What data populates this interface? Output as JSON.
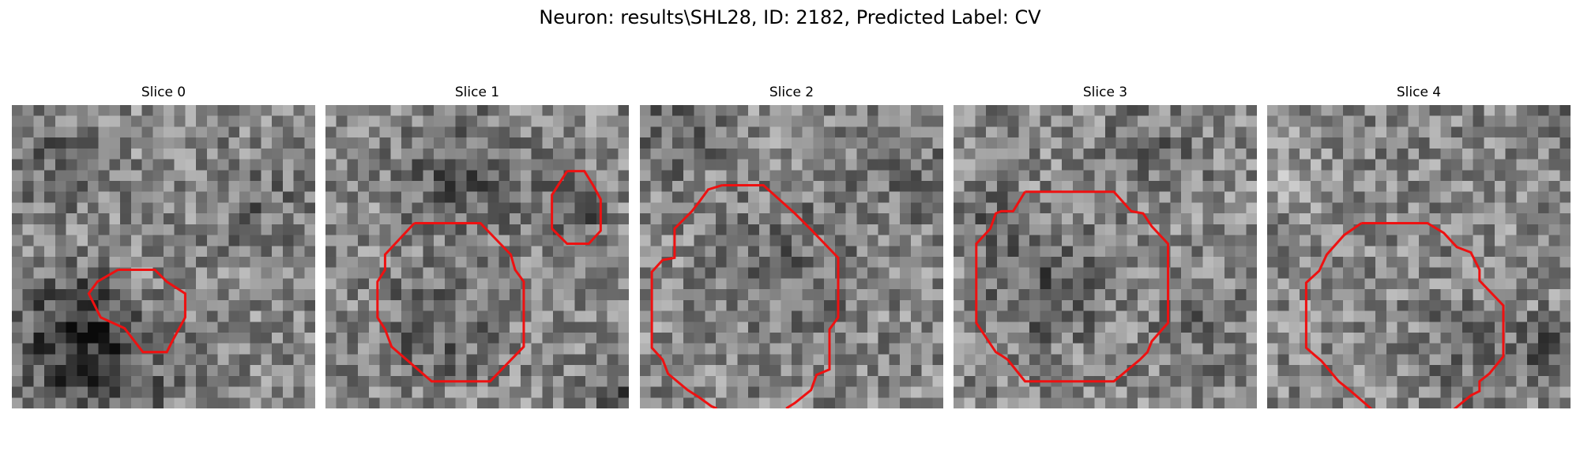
{
  "figure": {
    "title": "Neuron: results\\SHL28, ID: 2182, Predicted Label: CV",
    "contour_color": "#ee1111",
    "colormap": "gray",
    "grid_size": 28
  },
  "panels": [
    {
      "title": "Slice 0"
    },
    {
      "title": "Slice 1"
    },
    {
      "title": "Slice 2"
    },
    {
      "title": "Slice 3"
    },
    {
      "title": "Slice 4"
    }
  ]
}
